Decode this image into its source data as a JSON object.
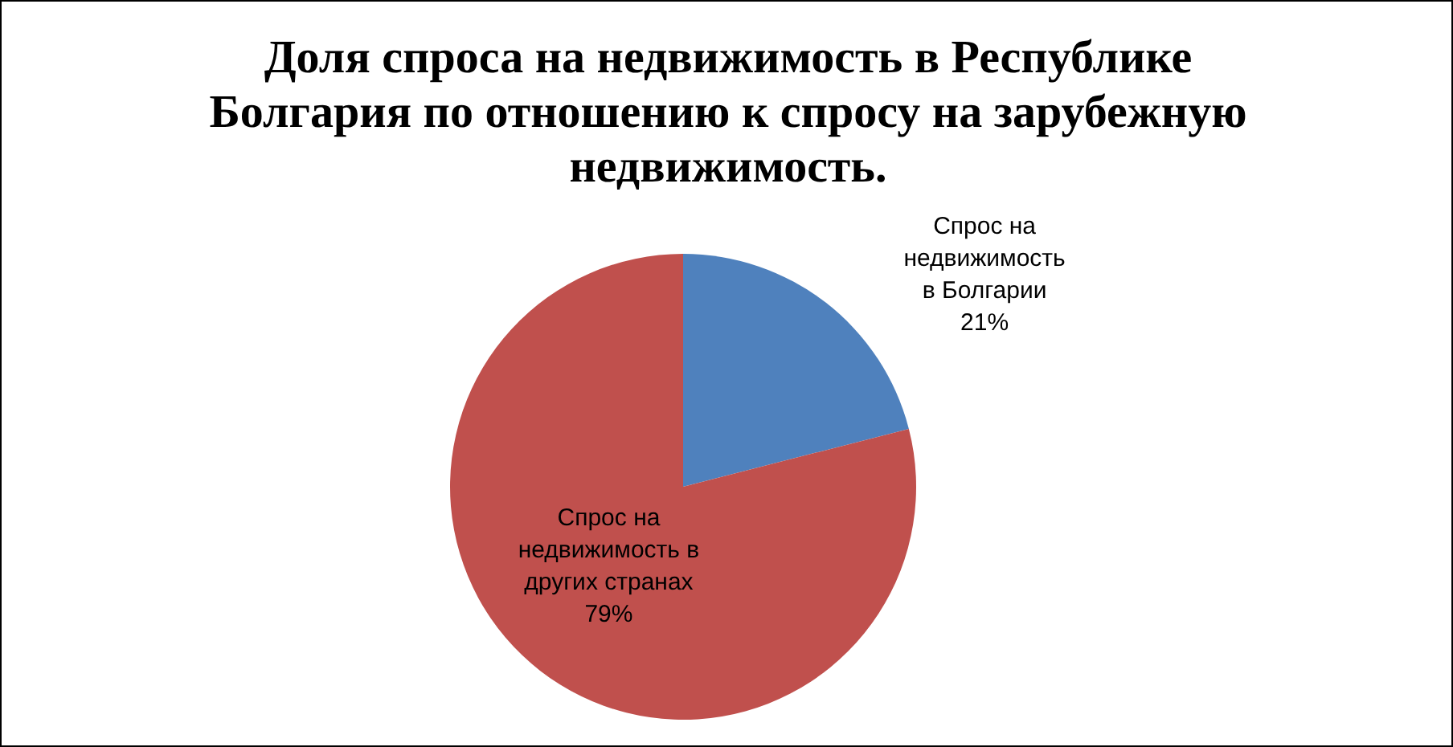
{
  "chart_data": {
    "type": "pie",
    "title": "Доля спроса на недвижимость в Республике Болгария по отношению к спросу на зарубежную недвижимость.",
    "categories": [
      "Спрос на недвижимость в Болгарии",
      "Спрос на недвижимость в других странах"
    ],
    "values": [
      21,
      79
    ],
    "colors": [
      "#4f81bd",
      "#c0504d"
    ],
    "value_labels": [
      "21%",
      "79%"
    ]
  }
}
